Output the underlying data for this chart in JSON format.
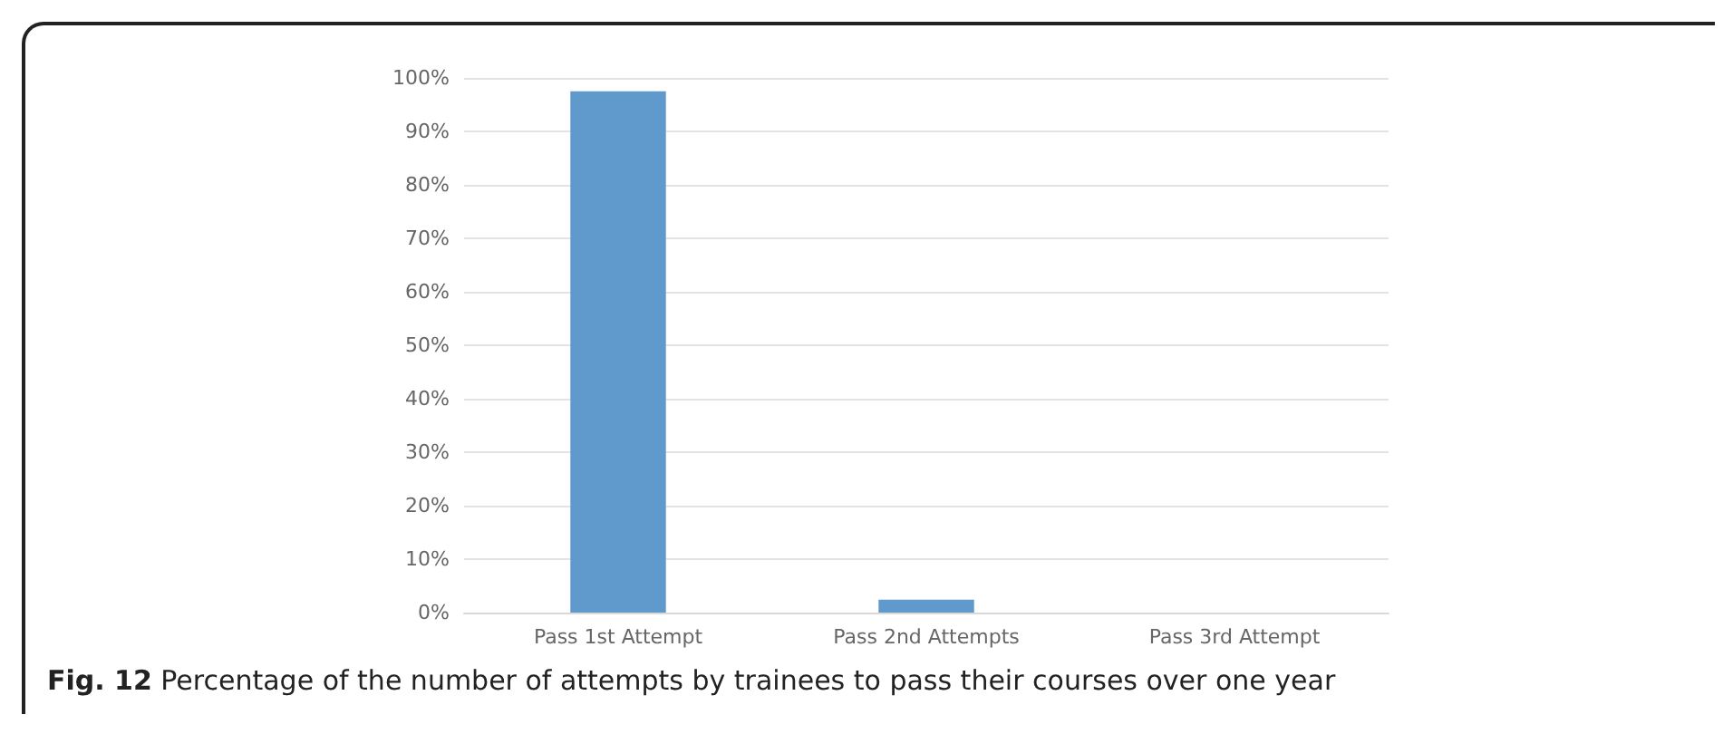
{
  "chart_data": {
    "type": "bar",
    "categories": [
      "Pass 1st Attempt",
      "Pass 2nd Attempts",
      "Pass 3rd Attempt"
    ],
    "values": [
      97.5,
      2.4,
      0
    ],
    "color": "#6099cc",
    "ylim": [
      0,
      100
    ],
    "yticks": [
      {
        "value": 0,
        "label": "0%"
      },
      {
        "value": 10,
        "label": "10%"
      },
      {
        "value": 20,
        "label": "20%"
      },
      {
        "value": 30,
        "label": "30%"
      },
      {
        "value": 40,
        "label": "40%"
      },
      {
        "value": 50,
        "label": "50%"
      },
      {
        "value": 60,
        "label": "60%"
      },
      {
        "value": 70,
        "label": "70%"
      },
      {
        "value": 80,
        "label": "80%"
      },
      {
        "value": 90,
        "label": "90%"
      },
      {
        "value": 100,
        "label": "100%"
      }
    ],
    "grid": true,
    "annotations": [
      "Fig. 12 Percentage of the number of attempts by trainees to pass their courses over one year"
    ]
  }
}
